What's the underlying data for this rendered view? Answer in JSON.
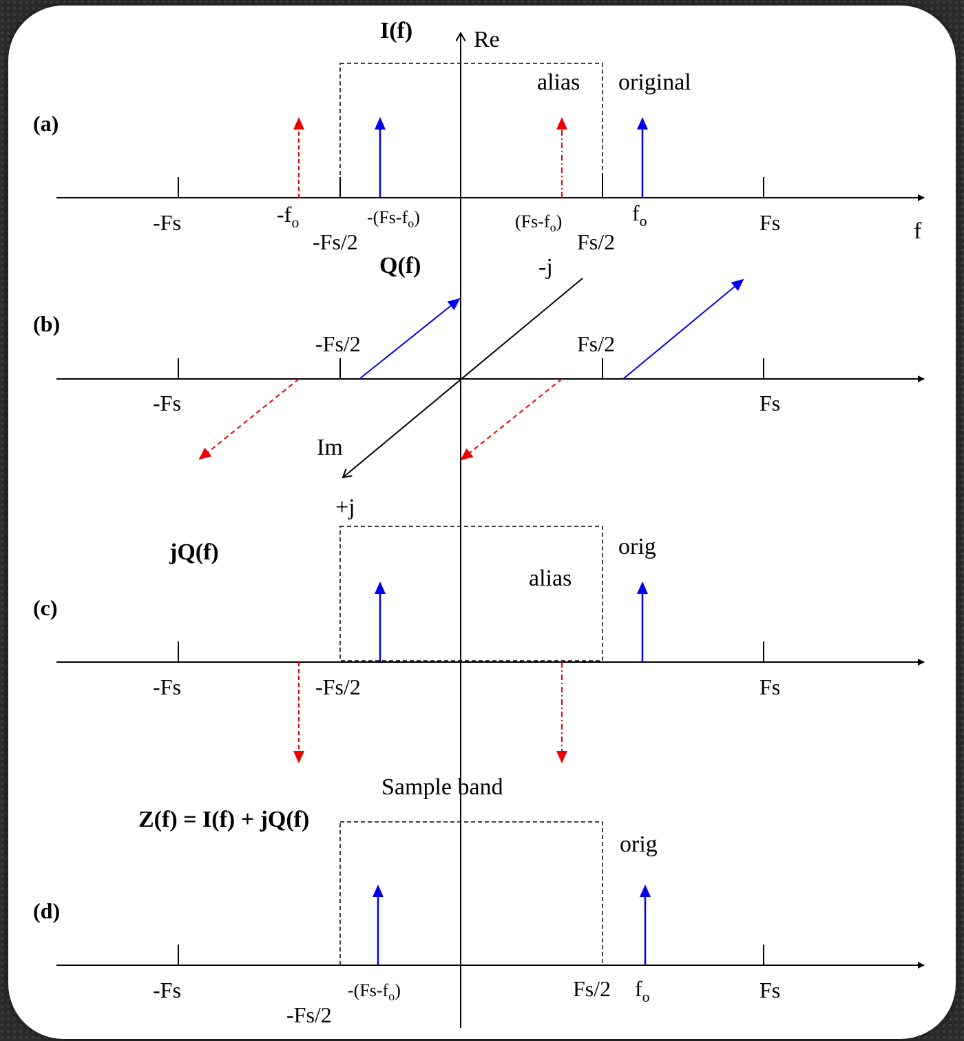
{
  "colors": {
    "blue": "#0000ee",
    "red": "#ee0000",
    "axis": "#000000"
  },
  "panels": {
    "a": {
      "tag": "(a)",
      "title": "I(f)",
      "re": "Re",
      "alias": "alias",
      "original": "original",
      "neg_fs": "-Fs",
      "neg_fo_main": "-f",
      "neg_fo_sub": "o",
      "neg_alias_pre": "-(Fs-f",
      "neg_alias_sub": "o",
      "neg_alias_post": ")",
      "alias_pre": "(Fs-f",
      "alias_sub": "o",
      "alias_post": ")",
      "fo_main": "f",
      "fo_sub": "o",
      "fs": "Fs",
      "f_axis": "f",
      "neg_half": "-Fs/2",
      "pos_half": "Fs/2"
    },
    "b": {
      "tag": "(b)",
      "title": "Q(f)",
      "minus_j": "-j",
      "neg_half": "-Fs/2",
      "pos_half": "Fs/2",
      "neg_fs": "-Fs",
      "fs": "Fs",
      "im": "Im",
      "plus_j": "+j"
    },
    "c": {
      "tag": "(c)",
      "title": "jQ(f)",
      "orig": "orig",
      "alias": "alias",
      "neg_fs": "-Fs",
      "neg_half": "-Fs/2",
      "fs": "Fs"
    },
    "d": {
      "tag": "(d)",
      "title": "Z(f) = I(f) + jQ(f)",
      "sample_band": "Sample band",
      "orig": "orig",
      "neg_fs": "-Fs",
      "neg_alias_pre": "-(Fs-f",
      "neg_alias_sub": "o",
      "neg_alias_post": ")",
      "pos_half": "Fs/2",
      "fo_main": "f",
      "fo_sub": "o",
      "fs": "Fs",
      "neg_half": "-Fs/2"
    }
  }
}
